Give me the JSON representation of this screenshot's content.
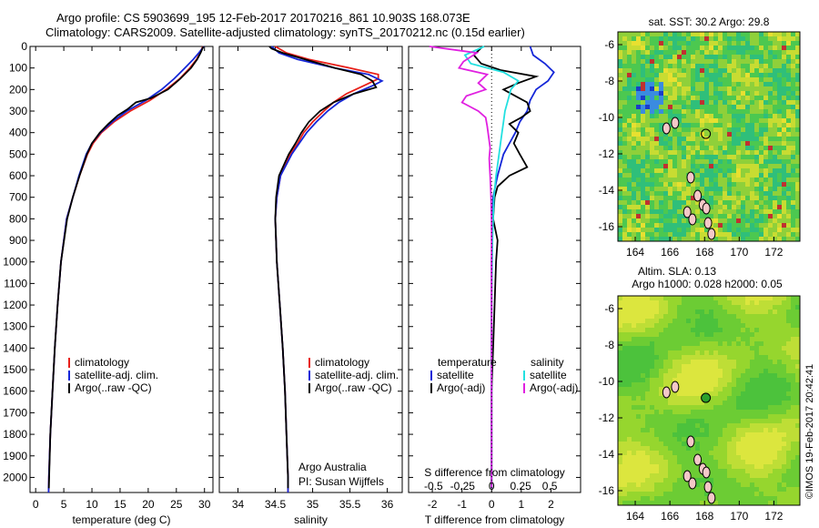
{
  "header": {
    "line1": "Argo profile: CS 5903699_195 12-Feb-2017 20170216_861 10.903S 168.073E",
    "line2": "Climatology: CARS2009. Satellite-adjusted climatology: synTS_20170212.nc (0.15d earlier)"
  },
  "colors": {
    "climatology": "#e8201a",
    "satellite": "#1426d8",
    "argo": "#000000",
    "salinity_satellite": "#22e0e0",
    "salinity_argo": "#e020e0"
  },
  "chart_data": [
    {
      "type": "line",
      "name": "temperature-profile",
      "xlabel": "temperature (deg C)",
      "ylabel": "",
      "xlim": [
        -1,
        31.5
      ],
      "ylim": [
        2070,
        0
      ],
      "xticks": [
        "0",
        "5",
        "10",
        "15",
        "20",
        "25",
        "30"
      ],
      "yticks": [
        "0",
        "100",
        "200",
        "300",
        "400",
        "500",
        "600",
        "700",
        "800",
        "900",
        "1000",
        "1100",
        "1200",
        "1300",
        "1400",
        "1500",
        "1600",
        "1700",
        "1800",
        "1900",
        "2000"
      ],
      "legend": [
        "climatology",
        "satellite-adj. clim.",
        "Argo(..raw -QC)"
      ],
      "series": [
        {
          "name": "climatology",
          "depth": [
            0,
            30,
            60,
            100,
            150,
            200,
            250,
            300,
            350,
            400,
            450,
            500,
            600,
            700,
            800,
            1000,
            1200,
            1400,
            1600,
            1800,
            2000,
            2070
          ],
          "values": [
            29.7,
            29.2,
            28.6,
            27.4,
            25.6,
            23.2,
            20.3,
            16.8,
            13.9,
            11.7,
            10.2,
            9.2,
            7.8,
            6.6,
            5.5,
            4.5,
            3.9,
            3.4,
            3.0,
            2.6,
            2.35,
            2.3
          ]
        },
        {
          "name": "satellite-adj. clim.",
          "depth": [
            0,
            30,
            60,
            100,
            150,
            200,
            250,
            300,
            350,
            400,
            450,
            500,
            600,
            700,
            800,
            1000,
            1200,
            1400,
            1600,
            1800,
            2000,
            2070
          ],
          "values": [
            29.9,
            29.0,
            28.0,
            26.5,
            24.6,
            22.4,
            19.6,
            16.2,
            13.6,
            11.5,
            10.0,
            9.0,
            7.7,
            6.6,
            5.5,
            4.5,
            3.9,
            3.4,
            3.0,
            2.6,
            2.35,
            2.3
          ]
        },
        {
          "name": "Argo(..raw -QC)",
          "depth": [
            0,
            30,
            60,
            100,
            150,
            200,
            240,
            260,
            290,
            320,
            360,
            400,
            450,
            500,
            600,
            700,
            800,
            1000,
            1200,
            1400,
            1600,
            1800,
            2000,
            2050
          ],
          "values": [
            29.8,
            29.3,
            28.7,
            27.6,
            25.7,
            23.5,
            20.5,
            17.8,
            16.4,
            14.6,
            12.9,
            11.4,
            10.0,
            9.1,
            7.8,
            6.6,
            5.6,
            4.5,
            3.9,
            3.4,
            3.0,
            2.6,
            2.4,
            2.35
          ]
        }
      ]
    },
    {
      "type": "line",
      "name": "salinity-profile",
      "xlabel": "salinity",
      "xlim": [
        33.75,
        36.2
      ],
      "ylim": [
        2070,
        0
      ],
      "xticks": [
        "34",
        "34.5",
        "35",
        "35.5",
        "36"
      ],
      "legend": [
        "climatology",
        "satellite-adj. clim.",
        "Argo(..raw -QC)"
      ],
      "series": [
        {
          "name": "climatology",
          "depth": [
            0,
            30,
            60,
            100,
            130,
            150,
            180,
            220,
            260,
            300,
            350,
            400,
            450,
            500,
            600,
            700,
            800,
            1000,
            1200,
            1400,
            1600,
            1800,
            2000,
            2070
          ],
          "values": [
            34.5,
            34.65,
            34.95,
            35.5,
            35.88,
            35.88,
            35.7,
            35.45,
            35.28,
            35.15,
            35.0,
            34.88,
            34.8,
            34.7,
            34.57,
            34.52,
            34.5,
            34.52,
            34.56,
            34.6,
            34.63,
            34.65,
            34.67,
            34.67
          ]
        },
        {
          "name": "satellite-adj. clim.",
          "depth": [
            0,
            30,
            60,
            100,
            130,
            160,
            180,
            220,
            260,
            300,
            350,
            400,
            450,
            500,
            600,
            700,
            800,
            1000,
            1200,
            1400,
            1600,
            1800,
            2000,
            2070
          ],
          "values": [
            34.45,
            34.55,
            34.8,
            35.3,
            35.75,
            35.93,
            35.82,
            35.55,
            35.35,
            35.2,
            35.05,
            34.92,
            34.82,
            34.72,
            34.57,
            34.52,
            34.5,
            34.52,
            34.56,
            34.6,
            34.63,
            34.65,
            34.67,
            34.67
          ]
        },
        {
          "name": "Argo(..raw -QC)",
          "depth": [
            0,
            10,
            30,
            60,
            100,
            130,
            160,
            190,
            220,
            260,
            300,
            350,
            400,
            450,
            500,
            600,
            700,
            800,
            1000,
            1200,
            1400,
            1600,
            1800,
            2000,
            2050
          ],
          "values": [
            34.42,
            34.45,
            34.6,
            34.9,
            35.3,
            35.65,
            35.8,
            35.85,
            35.55,
            35.28,
            35.1,
            34.95,
            34.85,
            34.77,
            34.68,
            34.55,
            34.51,
            34.5,
            34.52,
            34.56,
            34.6,
            34.63,
            34.65,
            34.67,
            34.67
          ]
        }
      ]
    },
    {
      "type": "line",
      "name": "difference-profile",
      "xlabel": "T difference from climatology",
      "xlabel_top": "S difference from climatology",
      "xlim": [
        -2.8,
        3.0
      ],
      "ylim": [
        2070,
        0
      ],
      "xticks": [
        "-2",
        "-1",
        "0",
        "1",
        "2"
      ],
      "xticks_s": [
        "-0.5",
        "-0.25",
        "0",
        "0.25",
        "0.5"
      ],
      "legend_headers": [
        "temperature",
        "salinity"
      ],
      "legend": [
        "satellite",
        "Argo(-adj)",
        "satellite",
        "Argo(-adj)"
      ],
      "series": [
        {
          "name": "temperature satellite",
          "depth": [
            0,
            40,
            80,
            120,
            160,
            200,
            250,
            300,
            350,
            400,
            450,
            500,
            550,
            600,
            650,
            700,
            800,
            900,
            1000,
            1200,
            1400,
            1600,
            1800,
            2000,
            2050
          ],
          "values": [
            1.3,
            1.4,
            1.8,
            2.1,
            1.9,
            1.5,
            1.3,
            1.2,
            0.95,
            0.8,
            0.6,
            0.4,
            0.3,
            0.2,
            0.12,
            0.05,
            0.03,
            0.02,
            0.0,
            0.0,
            0.0,
            0.0,
            0.0,
            0.0,
            0.0
          ]
        },
        {
          "name": "temperature Argo(-adj)",
          "depth": [
            0,
            40,
            80,
            110,
            140,
            170,
            200,
            230,
            260,
            300,
            330,
            360,
            400,
            450,
            500,
            560,
            600,
            650,
            700,
            800,
            900,
            1000,
            1200,
            1400,
            1600,
            1800,
            2000,
            2050
          ],
          "values": [
            -0.3,
            -0.6,
            -0.35,
            0.3,
            1.5,
            0.9,
            0.4,
            0.8,
            1.2,
            1.3,
            1.0,
            0.6,
            0.9,
            0.75,
            0.95,
            1.2,
            0.6,
            0.2,
            0.1,
            0.05,
            0.2,
            0.15,
            0.1,
            0.05,
            0.0,
            0.0,
            0.0,
            0.0
          ]
        },
        {
          "name": "salinity satellite",
          "depth": [
            0,
            40,
            80,
            120,
            160,
            200,
            250,
            300,
            350,
            400,
            450,
            500,
            550,
            600,
            700,
            800,
            900,
            1000,
            1200,
            1400,
            1600,
            1800,
            2000,
            2050
          ],
          "values": [
            -0.25,
            -0.9,
            -0.7,
            0.4,
            0.9,
            0.65,
            0.55,
            0.45,
            0.4,
            0.35,
            0.3,
            0.25,
            0.2,
            0.15,
            0.08,
            0.05,
            0.03,
            0.02,
            0.0,
            0.0,
            0.0,
            0.0,
            0.0,
            0.0
          ]
        },
        {
          "name": "salinity Argo(-adj)",
          "depth": [
            0,
            30,
            70,
            100,
            130,
            170,
            200,
            230,
            260,
            300,
            330,
            370,
            420,
            470,
            520,
            600,
            700,
            800,
            1000,
            1200,
            1400,
            1600,
            1800,
            2000,
            2050
          ],
          "values": [
            -2.1,
            -0.5,
            -0.95,
            -1.1,
            -0.15,
            -0.45,
            -0.2,
            -0.85,
            -1.0,
            -0.45,
            -0.2,
            -0.15,
            -0.1,
            -0.05,
            -0.08,
            -0.05,
            -0.02,
            0.0,
            0.0,
            0.0,
            0.0,
            0.0,
            0.0,
            0.0,
            0.0
          ]
        }
      ]
    },
    {
      "type": "heatmap",
      "name": "sst-map",
      "title": "sat. SST: 30.2  Argo: 29.8",
      "xlim": [
        163,
        173.5
      ],
      "ylim": [
        -16.8,
        -5.3
      ],
      "xticks": [
        "164",
        "166",
        "168",
        "170",
        "172"
      ],
      "yticks": [
        "-6",
        "-8",
        "-10",
        "-12",
        "-14",
        "-16"
      ],
      "marker": {
        "lon": 168.073,
        "lat": -10.903
      }
    },
    {
      "type": "heatmap",
      "name": "sla-map",
      "title": "Altim. SLA: 0.13",
      "subtitle": "Argo h1000: 0.028 h2000: 0.05",
      "xlim": [
        163,
        173.5
      ],
      "ylim": [
        -16.8,
        -5.3
      ],
      "xticks": [
        "164",
        "166",
        "168",
        "170",
        "172"
      ],
      "yticks": [
        "-6",
        "-8",
        "-10",
        "-12",
        "-14",
        "-16"
      ],
      "marker": {
        "lon": 168.073,
        "lat": -10.903
      }
    }
  ],
  "annotations": {
    "institution": "Argo Australia",
    "pi": "PI: Susan Wijffels",
    "credit": "©IMOS 19-Feb-2017 20:42:41"
  }
}
